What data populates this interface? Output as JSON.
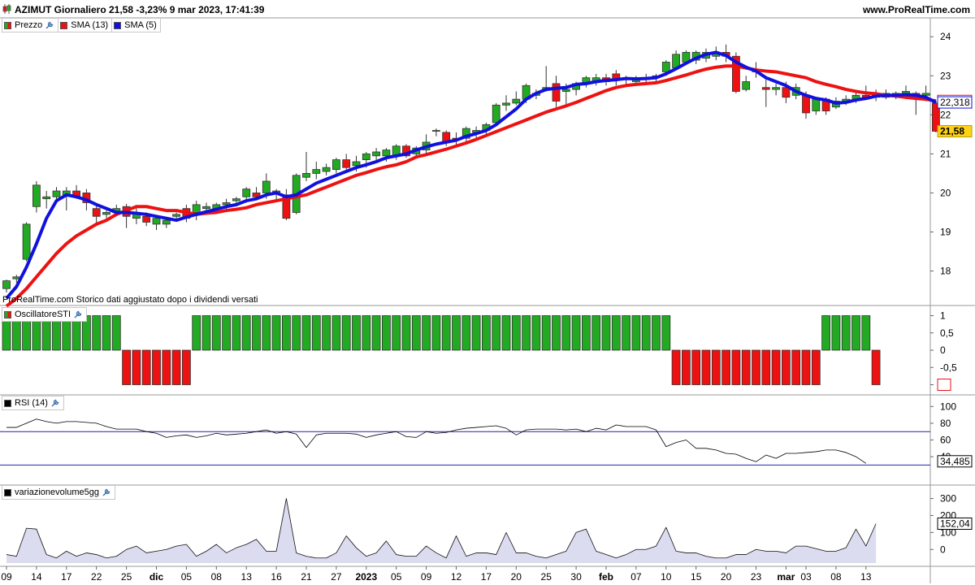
{
  "header": {
    "title": "AZIMUT Giornaliero 21,58  -3,23%  9 mar 2023, 17:41:39",
    "site": "www.ProRealTime.com",
    "footnote": "ProRealTime.com  Storico dati aggiustato dopo i dividendi versati"
  },
  "legends": {
    "price": [
      {
        "label": "Prezzo",
        "color": "#22aa22",
        "wrench": true
      },
      {
        "label": "SMA (13)",
        "color": "#ee1111"
      },
      {
        "label": "SMA (5)",
        "color": "#1111dd"
      }
    ],
    "sti": {
      "label": "OscillatoreSTI",
      "color": "#22aa22"
    },
    "rsi": {
      "label": "RSI (14)",
      "color": "#000000"
    },
    "vol": {
      "label": "variazionevolume5gg",
      "color": "#000000"
    }
  },
  "colors": {
    "up": "#22aa22",
    "down": "#ee1111",
    "sma13": "#ee1111",
    "sma5": "#1111dd",
    "rsi_line": "#000000",
    "rsi_levels": "#2222aa",
    "vol_fill": "#dcdcf0"
  },
  "chart_data": [
    {
      "type": "candlestick",
      "name": "price",
      "ylim": [
        17.2,
        24.4
      ],
      "yticks": [
        "24",
        "23",
        "22",
        "21",
        "20",
        "19",
        "18"
      ],
      "xticks": [
        "09",
        "14",
        "17",
        "22",
        "25",
        "dic",
        "05",
        "08",
        "13",
        "16",
        "21",
        "27",
        "2023",
        "05",
        "09",
        "12",
        "17",
        "20",
        "25",
        "30",
        "feb",
        "07",
        "10",
        "15",
        "20",
        "23",
        "mar",
        "03",
        "08",
        "13"
      ],
      "xtick_index": [
        0,
        3,
        6,
        9,
        12,
        15,
        18,
        21,
        24,
        27,
        30,
        33,
        36,
        39,
        42,
        45,
        48,
        51,
        54,
        57,
        60,
        63,
        66,
        69,
        72,
        75,
        78,
        80,
        83,
        86
      ],
      "candles": [
        {
          "o": 17.55,
          "h": 17.78,
          "l": 17.45,
          "c": 17.75
        },
        {
          "o": 17.8,
          "h": 17.9,
          "l": 17.7,
          "c": 17.85
        },
        {
          "o": 18.3,
          "h": 19.25,
          "l": 18.25,
          "c": 19.2
        },
        {
          "o": 19.65,
          "h": 20.3,
          "l": 19.5,
          "c": 20.2
        },
        {
          "o": 19.85,
          "h": 20.05,
          "l": 19.6,
          "c": 19.9
        },
        {
          "o": 19.9,
          "h": 20.15,
          "l": 19.8,
          "c": 20.05
        },
        {
          "o": 19.95,
          "h": 20.15,
          "l": 19.55,
          "c": 20.05
        },
        {
          "o": 20.05,
          "h": 20.2,
          "l": 19.85,
          "c": 19.9
        },
        {
          "o": 20.0,
          "h": 20.1,
          "l": 19.55,
          "c": 19.75
        },
        {
          "o": 19.6,
          "h": 19.7,
          "l": 19.15,
          "c": 19.4
        },
        {
          "o": 19.45,
          "h": 19.55,
          "l": 19.35,
          "c": 19.5
        },
        {
          "o": 19.5,
          "h": 19.7,
          "l": 19.4,
          "c": 19.6
        },
        {
          "o": 19.65,
          "h": 19.72,
          "l": 19.1,
          "c": 19.4
        },
        {
          "o": 19.35,
          "h": 19.65,
          "l": 19.2,
          "c": 19.5
        },
        {
          "o": 19.4,
          "h": 19.5,
          "l": 19.15,
          "c": 19.25
        },
        {
          "o": 19.2,
          "h": 19.4,
          "l": 19.05,
          "c": 19.35
        },
        {
          "o": 19.2,
          "h": 19.35,
          "l": 19.1,
          "c": 19.3
        },
        {
          "o": 19.4,
          "h": 19.5,
          "l": 19.3,
          "c": 19.45
        },
        {
          "o": 19.6,
          "h": 19.7,
          "l": 19.25,
          "c": 19.35
        },
        {
          "o": 19.5,
          "h": 19.8,
          "l": 19.3,
          "c": 19.7
        },
        {
          "o": 19.6,
          "h": 19.75,
          "l": 19.45,
          "c": 19.65
        },
        {
          "o": 19.6,
          "h": 19.75,
          "l": 19.5,
          "c": 19.7
        },
        {
          "o": 19.7,
          "h": 19.85,
          "l": 19.55,
          "c": 19.75
        },
        {
          "o": 19.8,
          "h": 19.9,
          "l": 19.7,
          "c": 19.85
        },
        {
          "o": 19.9,
          "h": 20.15,
          "l": 19.75,
          "c": 20.1
        },
        {
          "o": 20.0,
          "h": 20.15,
          "l": 19.85,
          "c": 19.9
        },
        {
          "o": 20.0,
          "h": 20.5,
          "l": 19.85,
          "c": 20.3
        },
        {
          "o": 20.0,
          "h": 20.1,
          "l": 19.8,
          "c": 20.05
        },
        {
          "o": 19.95,
          "h": 20.1,
          "l": 19.3,
          "c": 19.35
        },
        {
          "o": 19.5,
          "h": 20.5,
          "l": 19.45,
          "c": 20.45
        },
        {
          "o": 20.4,
          "h": 21.05,
          "l": 20.3,
          "c": 20.5
        },
        {
          "o": 20.5,
          "h": 20.8,
          "l": 20.35,
          "c": 20.6
        },
        {
          "o": 20.55,
          "h": 20.75,
          "l": 20.45,
          "c": 20.65
        },
        {
          "o": 20.6,
          "h": 20.9,
          "l": 20.5,
          "c": 20.85
        },
        {
          "o": 20.85,
          "h": 21.0,
          "l": 20.6,
          "c": 20.65
        },
        {
          "o": 20.7,
          "h": 20.95,
          "l": 20.55,
          "c": 20.8
        },
        {
          "o": 20.85,
          "h": 21.05,
          "l": 20.65,
          "c": 21.0
        },
        {
          "o": 20.95,
          "h": 21.15,
          "l": 20.8,
          "c": 21.05
        },
        {
          "o": 20.95,
          "h": 21.15,
          "l": 20.8,
          "c": 21.1
        },
        {
          "o": 20.95,
          "h": 21.25,
          "l": 20.85,
          "c": 21.2
        },
        {
          "o": 21.2,
          "h": 21.25,
          "l": 20.9,
          "c": 20.95
        },
        {
          "o": 21.0,
          "h": 21.2,
          "l": 20.95,
          "c": 21.15
        },
        {
          "o": 21.1,
          "h": 21.5,
          "l": 21.0,
          "c": 21.3
        },
        {
          "o": 21.6,
          "h": 21.65,
          "l": 21.45,
          "c": 21.6
        },
        {
          "o": 21.55,
          "h": 21.6,
          "l": 21.2,
          "c": 21.3
        },
        {
          "o": 21.4,
          "h": 21.55,
          "l": 21.2,
          "c": 21.35
        },
        {
          "o": 21.4,
          "h": 21.7,
          "l": 21.3,
          "c": 21.65
        },
        {
          "o": 21.55,
          "h": 21.7,
          "l": 21.4,
          "c": 21.6
        },
        {
          "o": 21.6,
          "h": 21.8,
          "l": 21.5,
          "c": 21.75
        },
        {
          "o": 21.8,
          "h": 22.3,
          "l": 21.75,
          "c": 22.25
        },
        {
          "o": 22.25,
          "h": 22.5,
          "l": 22.1,
          "c": 22.3
        },
        {
          "o": 22.3,
          "h": 22.6,
          "l": 22.25,
          "c": 22.4
        },
        {
          "o": 22.4,
          "h": 22.8,
          "l": 22.3,
          "c": 22.75
        },
        {
          "o": 22.5,
          "h": 22.65,
          "l": 22.4,
          "c": 22.55
        },
        {
          "o": 22.65,
          "h": 23.25,
          "l": 22.6,
          "c": 22.7
        },
        {
          "o": 22.8,
          "h": 23.0,
          "l": 22.2,
          "c": 22.35
        },
        {
          "o": 22.6,
          "h": 22.8,
          "l": 22.25,
          "c": 22.65
        },
        {
          "o": 22.65,
          "h": 22.85,
          "l": 22.5,
          "c": 22.8
        },
        {
          "o": 22.8,
          "h": 23.0,
          "l": 22.7,
          "c": 22.95
        },
        {
          "o": 22.85,
          "h": 23.05,
          "l": 22.75,
          "c": 22.95
        },
        {
          "o": 22.95,
          "h": 23.05,
          "l": 22.75,
          "c": 22.85
        },
        {
          "o": 23.05,
          "h": 23.15,
          "l": 22.75,
          "c": 22.9
        },
        {
          "o": 22.9,
          "h": 23.0,
          "l": 22.75,
          "c": 22.95
        },
        {
          "o": 22.85,
          "h": 23.0,
          "l": 22.75,
          "c": 22.9
        },
        {
          "o": 22.9,
          "h": 23.05,
          "l": 22.8,
          "c": 22.95
        },
        {
          "o": 22.95,
          "h": 23.05,
          "l": 22.85,
          "c": 23.0
        },
        {
          "o": 23.1,
          "h": 23.4,
          "l": 23.0,
          "c": 23.35
        },
        {
          "o": 23.2,
          "h": 23.65,
          "l": 23.15,
          "c": 23.55
        },
        {
          "o": 23.35,
          "h": 23.65,
          "l": 23.3,
          "c": 23.6
        },
        {
          "o": 23.4,
          "h": 23.65,
          "l": 23.3,
          "c": 23.6
        },
        {
          "o": 23.45,
          "h": 23.7,
          "l": 23.35,
          "c": 23.6
        },
        {
          "o": 23.5,
          "h": 23.75,
          "l": 23.4,
          "c": 23.6
        },
        {
          "o": 23.6,
          "h": 23.8,
          "l": 23.35,
          "c": 23.5
        },
        {
          "o": 23.5,
          "h": 23.6,
          "l": 22.55,
          "c": 22.6
        },
        {
          "o": 22.65,
          "h": 23.0,
          "l": 22.6,
          "c": 22.85
        },
        {
          "o": 23.1,
          "h": 23.35,
          "l": 22.95,
          "c": 23.15
        },
        {
          "o": 22.7,
          "h": 22.95,
          "l": 22.2,
          "c": 22.65
        },
        {
          "o": 22.65,
          "h": 22.8,
          "l": 22.5,
          "c": 22.7
        },
        {
          "o": 22.7,
          "h": 22.85,
          "l": 22.3,
          "c": 22.45
        },
        {
          "o": 22.5,
          "h": 22.8,
          "l": 22.4,
          "c": 22.7
        },
        {
          "o": 22.5,
          "h": 22.6,
          "l": 21.9,
          "c": 22.05
        },
        {
          "o": 22.1,
          "h": 22.45,
          "l": 22.0,
          "c": 22.4
        },
        {
          "o": 22.4,
          "h": 22.45,
          "l": 22.0,
          "c": 22.1
        },
        {
          "o": 22.2,
          "h": 22.45,
          "l": 22.15,
          "c": 22.35
        },
        {
          "o": 22.35,
          "h": 22.5,
          "l": 22.25,
          "c": 22.4
        },
        {
          "o": 22.4,
          "h": 22.6,
          "l": 22.3,
          "c": 22.5
        },
        {
          "o": 22.5,
          "h": 22.75,
          "l": 22.4,
          "c": 22.45
        },
        {
          "o": 22.45,
          "h": 22.65,
          "l": 22.35,
          "c": 22.5
        },
        {
          "o": 22.45,
          "h": 22.65,
          "l": 22.4,
          "c": 22.55
        },
        {
          "o": 22.5,
          "h": 22.6,
          "l": 22.4,
          "c": 22.55
        },
        {
          "o": 22.55,
          "h": 22.75,
          "l": 22.4,
          "c": 22.6
        },
        {
          "o": 22.55,
          "h": 22.6,
          "l": 22.0,
          "c": 22.5
        },
        {
          "o": 22.5,
          "h": 22.75,
          "l": 22.35,
          "c": 22.55
        },
        {
          "o": 22.3,
          "h": 22.35,
          "l": 21.55,
          "c": 21.58
        }
      ],
      "sma13": [
        17.1,
        17.3,
        17.55,
        17.85,
        18.15,
        18.45,
        18.7,
        18.9,
        19.05,
        19.2,
        19.3,
        19.45,
        19.55,
        19.65,
        19.65,
        19.6,
        19.55,
        19.55,
        19.5,
        19.45,
        19.48,
        19.5,
        19.55,
        19.58,
        19.62,
        19.7,
        19.75,
        19.8,
        19.85,
        19.9,
        19.95,
        20.05,
        20.15,
        20.25,
        20.35,
        20.45,
        20.52,
        20.6,
        20.67,
        20.72,
        20.8,
        20.92,
        20.98,
        21.05,
        21.12,
        21.2,
        21.28,
        21.37,
        21.47,
        21.57,
        21.67,
        21.77,
        21.87,
        21.97,
        22.07,
        22.15,
        22.23,
        22.32,
        22.42,
        22.52,
        22.62,
        22.7,
        22.75,
        22.78,
        22.8,
        22.82,
        22.88,
        22.95,
        23.02,
        23.1,
        23.17,
        23.22,
        23.25,
        23.25,
        23.2,
        23.15,
        23.12,
        23.1,
        23.05,
        23.0,
        22.95,
        22.85,
        22.78,
        22.72,
        22.65,
        22.6,
        22.56,
        22.54,
        22.5,
        22.48,
        22.45,
        22.42,
        22.4,
        22.356
      ],
      "sma5": [
        17.3,
        17.6,
        18.1,
        18.7,
        19.35,
        19.8,
        19.95,
        19.9,
        19.82,
        19.7,
        19.6,
        19.5,
        19.5,
        19.48,
        19.45,
        19.4,
        19.35,
        19.3,
        19.38,
        19.45,
        19.52,
        19.58,
        19.65,
        19.7,
        19.8,
        19.85,
        19.95,
        20.0,
        19.9,
        19.95,
        20.1,
        20.25,
        20.35,
        20.45,
        20.55,
        20.65,
        20.72,
        20.8,
        20.9,
        20.95,
        21.0,
        21.1,
        21.18,
        21.25,
        21.3,
        21.35,
        21.45,
        21.52,
        21.6,
        21.75,
        21.95,
        22.15,
        22.4,
        22.55,
        22.65,
        22.68,
        22.7,
        22.78,
        22.8,
        22.85,
        22.88,
        22.9,
        22.93,
        22.92,
        22.93,
        22.95,
        23.05,
        23.18,
        23.32,
        23.45,
        23.55,
        23.6,
        23.52,
        23.35,
        23.22,
        23.12,
        22.95,
        22.85,
        22.75,
        22.6,
        22.5,
        22.42,
        22.38,
        22.3,
        22.32,
        22.38,
        22.42,
        22.48,
        22.5,
        22.5,
        22.52,
        22.5,
        22.45,
        22.318
      ]
    },
    {
      "type": "bar",
      "name": "OscillatoreSTI",
      "ylim": [
        -1.2,
        1.2
      ],
      "yticks": [
        "1",
        "0,5",
        "0",
        "-0,5",
        "-1"
      ],
      "values": [
        1,
        1,
        1,
        1,
        1,
        1,
        1,
        1,
        1,
        1,
        1,
        1,
        -1,
        -1,
        -1,
        -1,
        -1,
        -1,
        -1,
        1,
        1,
        1,
        1,
        1,
        1,
        1,
        1,
        1,
        1,
        1,
        1,
        1,
        1,
        1,
        1,
        1,
        1,
        1,
        1,
        1,
        1,
        1,
        1,
        1,
        1,
        1,
        1,
        1,
        1,
        1,
        1,
        1,
        1,
        1,
        1,
        1,
        1,
        1,
        1,
        1,
        1,
        1,
        1,
        1,
        1,
        1,
        1,
        -1,
        -1,
        -1,
        -1,
        -1,
        -1,
        -1,
        -1,
        -1,
        -1,
        -1,
        -1,
        -1,
        -1,
        -1,
        1,
        1,
        1,
        1,
        1,
        -1
      ]
    },
    {
      "type": "line",
      "name": "RSI (14)",
      "ylim": [
        10,
        110
      ],
      "yticks": [
        "100",
        "80",
        "60",
        "40"
      ],
      "levels": [
        70,
        30
      ],
      "last_label": "34,485",
      "values": [
        75,
        75,
        80,
        85,
        82,
        80,
        82,
        82,
        81,
        80,
        76,
        73,
        73,
        73,
        70,
        68,
        63,
        65,
        66,
        63,
        65,
        68,
        66,
        67,
        68,
        70,
        72,
        68,
        70,
        67,
        51,
        66,
        68,
        68,
        68,
        67,
        63,
        66,
        68,
        70,
        64,
        63,
        70,
        68,
        69,
        72,
        74,
        75,
        76,
        77,
        74,
        66,
        72,
        73,
        73,
        73,
        72,
        73,
        70,
        74,
        72,
        78,
        76,
        76,
        76,
        72,
        52,
        57,
        60,
        50,
        50,
        48,
        44,
        43,
        38,
        34,
        42,
        38,
        44,
        44,
        45,
        46,
        48,
        48,
        45,
        40,
        32
      ]
    },
    {
      "type": "area",
      "name": "variazionevolume5gg",
      "ylim": [
        -80,
        360
      ],
      "yticks": [
        "300",
        "200",
        "100",
        "0"
      ],
      "last_label": "152,04",
      "values": [
        -30,
        -40,
        125,
        120,
        -30,
        -50,
        -10,
        -40,
        -20,
        -30,
        -50,
        -40,
        0,
        20,
        -20,
        -10,
        0,
        20,
        30,
        -40,
        -10,
        30,
        -20,
        10,
        30,
        60,
        -10,
        -10,
        300,
        -20,
        -40,
        -50,
        -50,
        -20,
        80,
        10,
        -40,
        -20,
        50,
        -30,
        -40,
        -40,
        20,
        -20,
        -50,
        80,
        -40,
        -20,
        -20,
        -30,
        100,
        -20,
        -20,
        -40,
        -50,
        -30,
        -10,
        100,
        120,
        -10,
        -30,
        -50,
        -30,
        0,
        0,
        20,
        130,
        -10,
        -20,
        -20,
        -40,
        -50,
        -50,
        -30,
        -30,
        0,
        -10,
        -10,
        -20,
        20,
        20,
        5,
        -10,
        -10,
        10,
        120,
        20,
        152
      ]
    }
  ]
}
